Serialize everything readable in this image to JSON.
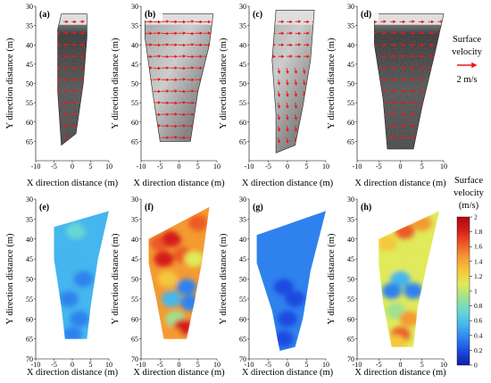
{
  "chart_data": [
    {
      "type": "heatmap",
      "panel": "(a)",
      "row": "surface velocity vectors on image",
      "xlabel": "X direction distance (m)",
      "ylabel": "Y direction distance (m)",
      "xlim": [
        -10,
        10
      ],
      "ylim": [
        70,
        30
      ],
      "xticks": [
        "-10",
        "-5",
        "0",
        "5",
        "10"
      ],
      "yticks": [
        "30",
        "35",
        "40",
        "45",
        "50",
        "55",
        "60",
        "65"
      ]
    },
    {
      "type": "heatmap",
      "panel": "(b)",
      "row": "surface velocity vectors on image",
      "xlabel": "X direction distance (m)",
      "ylabel": "Y direction distance (m)",
      "xlim": [
        -10,
        10
      ],
      "ylim": [
        70,
        30
      ],
      "xticks": [
        "-10",
        "-5",
        "0",
        "5",
        "10"
      ],
      "yticks": [
        "30",
        "35",
        "40",
        "45",
        "50",
        "55",
        "60",
        "65"
      ]
    },
    {
      "type": "heatmap",
      "panel": "(c)",
      "row": "surface velocity vectors on image",
      "xlabel": "X direction distance (m)",
      "ylabel": "Y direction distance (m)",
      "xlim": [
        -10,
        10
      ],
      "ylim": [
        70,
        30
      ],
      "xticks": [
        "-10",
        "-5",
        "0",
        "5",
        "10"
      ],
      "yticks": [
        "30",
        "35",
        "40",
        "45",
        "50",
        "55",
        "60",
        "65"
      ]
    },
    {
      "type": "heatmap",
      "panel": "(d)",
      "row": "surface velocity vectors on image",
      "xlabel": "X direction distance (m)",
      "ylabel": "Y direction distance (m)",
      "xlim": [
        -10,
        10
      ],
      "ylim": [
        70,
        30
      ],
      "xticks": [
        "-10",
        "-5",
        "0",
        "5",
        "10"
      ],
      "yticks": [
        "30",
        "35",
        "40",
        "45",
        "50",
        "55",
        "60",
        "65"
      ]
    },
    {
      "type": "heatmap",
      "panel": "(e)",
      "row": "surface velocity contour",
      "xlabel": "X direction distance (m)",
      "ylabel": "Y direction distance (m)",
      "xlim": [
        -10,
        10
      ],
      "ylim": [
        70,
        30
      ],
      "xticks": [
        "-10",
        "-5",
        "0",
        "5",
        "10"
      ],
      "yticks": [
        "30",
        "35",
        "40",
        "45",
        "50",
        "55",
        "60",
        "65",
        "70"
      ],
      "dominant_range": [
        0.4,
        0.8
      ]
    },
    {
      "type": "heatmap",
      "panel": "(f)",
      "row": "surface velocity contour",
      "xlabel": "X direction distance (m)",
      "ylabel": "Y direction distance (m)",
      "xlim": [
        -10,
        10
      ],
      "ylim": [
        70,
        30
      ],
      "xticks": [
        "-10",
        "-5",
        "0",
        "5",
        "10"
      ],
      "yticks": [
        "30",
        "35",
        "40",
        "45",
        "50",
        "55",
        "60",
        "65",
        "70"
      ],
      "dominant_range": [
        0.2,
        2.0
      ]
    },
    {
      "type": "heatmap",
      "panel": "(g)",
      "row": "surface velocity contour",
      "xlabel": "X direction distance (m)",
      "ylabel": "Y direction distance (m)",
      "xlim": [
        -10,
        10
      ],
      "ylim": [
        70,
        30
      ],
      "xticks": [
        "-10",
        "-5",
        "0",
        "5",
        "10"
      ],
      "yticks": [
        "30",
        "35",
        "40",
        "45",
        "50",
        "55",
        "60",
        "65",
        "70"
      ],
      "dominant_range": [
        0.1,
        0.4
      ]
    },
    {
      "type": "heatmap",
      "panel": "(h)",
      "row": "surface velocity contour",
      "xlabel": "X direction distance (m)",
      "ylabel": "Y direction distance (m)",
      "xlim": [
        -10,
        10
      ],
      "ylim": [
        70,
        30
      ],
      "xticks": [
        "-10",
        "-5",
        "0",
        "5",
        "10"
      ],
      "yticks": [
        "30",
        "35",
        "40",
        "45",
        "50",
        "55",
        "60",
        "65",
        "70"
      ],
      "dominant_range": [
        0.3,
        1.8
      ]
    }
  ],
  "vector_legend": {
    "title_line1": "Surface",
    "title_line2": "velocity",
    "scale_label": "2 m/s",
    "scale_value": 2,
    "arrow_color": "#e8191b"
  },
  "colorbar": {
    "title_line1": "Surface",
    "title_line2": "velocity",
    "unit": "(m/s)",
    "ticks": [
      "2",
      "1.8",
      "1.6",
      "1.4",
      "1.2",
      "1",
      "0.8",
      "0.6",
      "0.4",
      "0.2",
      "0"
    ],
    "range": [
      0,
      2
    ],
    "stops": [
      "#1020a8",
      "#1a48e0",
      "#2f82ee",
      "#45b6ee",
      "#66d8d2",
      "#9ee290",
      "#e0ea5a",
      "#f4c83a",
      "#f49a32",
      "#ec5a26",
      "#d41e1c",
      "#b00a10"
    ]
  }
}
